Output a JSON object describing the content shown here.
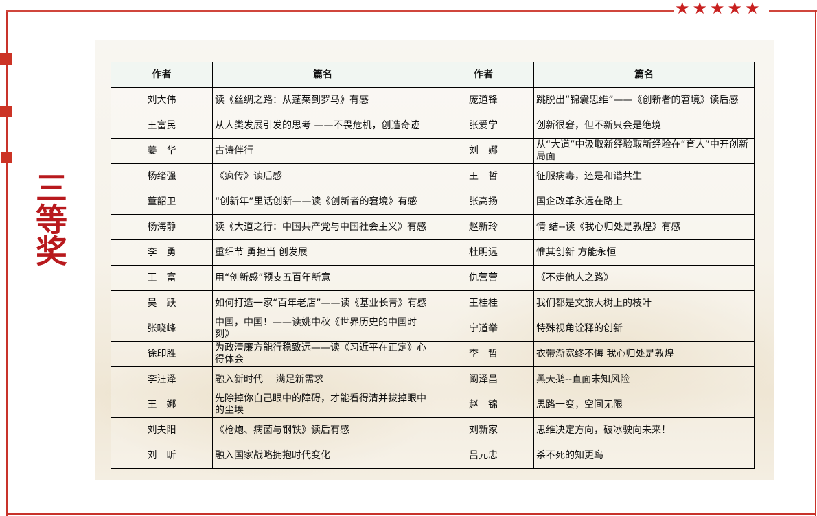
{
  "award_title": "三等奖",
  "decor": {
    "accent_color": "#c8322a",
    "stars": [
      "star",
      "star",
      "star",
      "star",
      "star"
    ]
  },
  "table": {
    "headers": [
      "作者",
      "篇名",
      "作者",
      "篇名"
    ],
    "rows": [
      {
        "a1": "刘大伟",
        "t1": "读《丝绸之路：从蓬莱到罗马》有感",
        "a2": "庞道锋",
        "t2": "跳脱出“锦囊思维”——《创新者的窘境》读后感"
      },
      {
        "a1": "王富民",
        "t1": "从人类发展引发的思考 ——不畏危机，创造奇迹",
        "a2": "张爱学",
        "t2": "创新很窘，但不新只会是绝境"
      },
      {
        "a1": "姜　华",
        "t1": "古诗伴行",
        "a2": "刘　娜",
        "t2": "从“大道”中汲取新经验取新经验在“育人”中开创新局面"
      },
      {
        "a1": "杨绪强",
        "t1": "《疯传》读后感",
        "a2": "王　哲",
        "t2": "征服病毒，还是和谐共生"
      },
      {
        "a1": "董韶卫",
        "t1": "“创新年”里话创新——读《创新者的窘境》有感",
        "a2": "张高扬",
        "t2": "国企改革永远在路上"
      },
      {
        "a1": "杨海静",
        "t1": "读《大道之行：中国共产党与中国社会主义》有感",
        "a2": "赵新玲",
        "t2": "情  结--读《我心归处是敦煌》有感"
      },
      {
        "a1": "李　勇",
        "t1": "重细节 勇担当 创发展",
        "a2": "杜明远",
        "t2": "惟其创新  方能永恒"
      },
      {
        "a1": "王　富",
        "t1": "用“创新感”预支五百年新意",
        "a2": "仇营营",
        "t2": "《不走他人之路》"
      },
      {
        "a1": "吴　跃",
        "t1": "如何打造一家“百年老店”——读《基业长青》有感",
        "a2": "王桂桂",
        "t2": "我们都是文旅大树上的枝叶"
      },
      {
        "a1": "张晓峰",
        "t1": "中国，中国！——读姚中秋《世界历史的中国时刻》",
        "a2": "宁道举",
        "t2": "特殊视角诠释的创新"
      },
      {
        "a1": "徐印胜",
        "t1": "为政清廉方能行稳致远——读《习近平在正定》心得体会",
        "a2": "李　哲",
        "t2": "衣带渐宽终不悔  我心归处是敦煌"
      },
      {
        "a1": "李汪泽",
        "t1": "融入新时代　 满足新需求",
        "a2": "阚泽昌",
        "t2": "黑天鹅--直面未知风险"
      },
      {
        "a1": "王　娜",
        "t1": "先除掉你自己眼中的障碍，才能看得清并拔掉眼中的尘埃",
        "a2": "赵　锦",
        "t2": "思路一变，空间无限"
      },
      {
        "a1": "刘夫阳",
        "t1": "《枪炮、病菌与钢铁》读后有感",
        "a2": "刘新家",
        "t2": "思维决定方向，破冰驶向未来！"
      },
      {
        "a1": "刘　昕",
        "t1": "融入国家战略拥抱时代变化",
        "a2": "吕元忠",
        "t2": "杀不死的知更鸟"
      }
    ]
  }
}
